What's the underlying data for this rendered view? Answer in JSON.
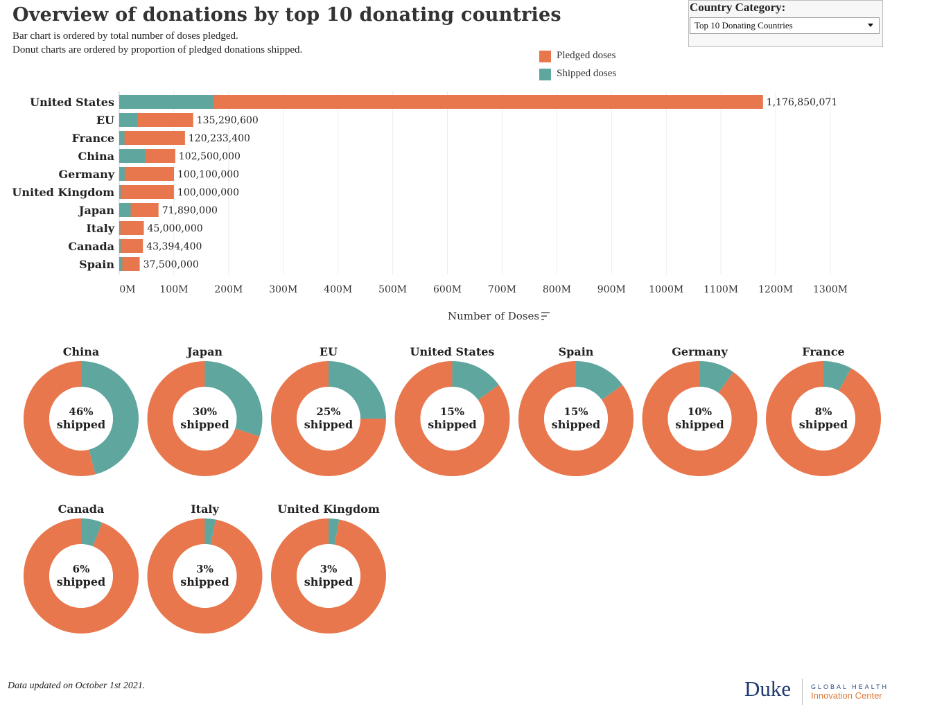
{
  "header": {
    "title": "Overview of donations by top 10 donating countries",
    "subtitle1": "Bar chart is ordered by total number of doses pledged.",
    "subtitle2": "Donut charts are ordered by proportion of pledged donations shipped."
  },
  "filter": {
    "label": "Country Category:",
    "selected": "Top 10 Donating Countries"
  },
  "legend": {
    "pledged_label": "Pledged doses",
    "shipped_label": "Shipped doses"
  },
  "colors": {
    "pledged": "#E8774D",
    "shipped": "#5FA69E",
    "donut_center": "#FFFFFF"
  },
  "footer": {
    "note": "Data updated on October 1st 2021.",
    "logo_main": "Duke",
    "logo_line1": "GLOBAL HEALTH",
    "logo_line2": "Innovation Center"
  },
  "chart_data": [
    {
      "type": "bar",
      "orientation": "horizontal",
      "stacked_overlay": true,
      "categories": [
        "United States",
        "EU",
        "France",
        "China",
        "Germany",
        "United Kingdom",
        "Japan",
        "Italy",
        "Canada",
        "Spain"
      ],
      "series": [
        {
          "name": "Pledged doses",
          "values": [
            1176850071,
            135290600,
            120233400,
            102500000,
            100100000,
            100000000,
            71890000,
            45000000,
            43394400,
            37500000
          ]
        },
        {
          "name": "Shipped doses",
          "values": [
            172000000,
            33000000,
            9600000,
            47000000,
            10000000,
            2600000,
            21000000,
            1350000,
            2600000,
            5600000
          ]
        }
      ],
      "data_labels": [
        "1,176,850,071",
        "135,290,600",
        "120,233,400",
        "102,500,000",
        "100,100,000",
        "100,000,000",
        "71,890,000",
        "45,000,000",
        "43,394,400",
        "37,500,000"
      ],
      "x_ticks": [
        0,
        100000000,
        200000000,
        300000000,
        400000000,
        500000000,
        600000000,
        700000000,
        800000000,
        900000000,
        1000000000,
        1100000000,
        1200000000,
        1300000000
      ],
      "x_tick_labels": [
        "0M",
        "100M",
        "200M",
        "300M",
        "400M",
        "500M",
        "600M",
        "700M",
        "800M",
        "900M",
        "1000M",
        "1100M",
        "1200M",
        "1300M"
      ],
      "xlim": [
        0,
        1300000000
      ],
      "xlabel": "Number of Doses",
      "grid": "vertical",
      "legend": "top-right"
    },
    {
      "type": "pie",
      "variant": "donut",
      "shipped_word": "shipped",
      "items": [
        {
          "name": "China",
          "shipped_pct": 46
        },
        {
          "name": "Japan",
          "shipped_pct": 30
        },
        {
          "name": "EU",
          "shipped_pct": 25
        },
        {
          "name": "United States",
          "shipped_pct": 15
        },
        {
          "name": "Spain",
          "shipped_pct": 15
        },
        {
          "name": "Germany",
          "shipped_pct": 10
        },
        {
          "name": "France",
          "shipped_pct": 8
        },
        {
          "name": "Canada",
          "shipped_pct": 6
        },
        {
          "name": "Italy",
          "shipped_pct": 3
        },
        {
          "name": "United Kingdom",
          "shipped_pct": 3
        }
      ]
    }
  ]
}
